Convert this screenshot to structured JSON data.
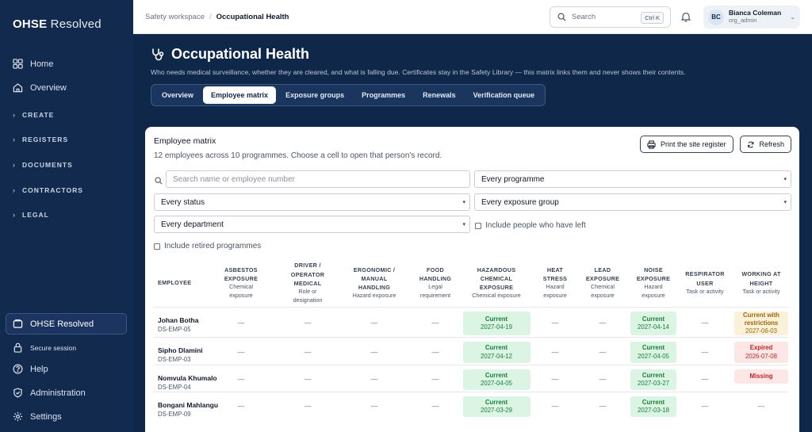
{
  "brand": {
    "bold": "OHSE",
    "light": " Resolved"
  },
  "sidebar": {
    "items": [
      {
        "label": "Home",
        "icon": "grid-icon"
      },
      {
        "label": "Overview",
        "icon": "home-icon"
      }
    ],
    "sections": [
      "CREATE",
      "REGISTERS",
      "DOCUMENTS",
      "CONTRACTORS",
      "LEGAL"
    ],
    "org_label": "OHSE Resolved",
    "secure_label": "Secure session",
    "footer_items": [
      {
        "label": "Help",
        "icon": "help-icon"
      },
      {
        "label": "Administration",
        "icon": "shield-icon"
      },
      {
        "label": "Settings",
        "icon": "gear-icon"
      }
    ]
  },
  "topbar": {
    "breadcrumb": [
      "Safety workspace",
      "Occupational Health"
    ],
    "search_placeholder": "Search",
    "search_shortcut": "Ctrl K",
    "user": {
      "initials": "BC",
      "name": "Bianca Coleman",
      "role": "org_admin"
    }
  },
  "hero": {
    "title": "Occupational Health",
    "subtitle": "Who needs medical surveillance, whether they are cleared, and what is falling due. Certificates stay in the Safety Library — this matrix links them and never shows their contents.",
    "tabs": [
      "Overview",
      "Employee matrix",
      "Exposure groups",
      "Programmes",
      "Renewals",
      "Verification queue"
    ],
    "active_tab": 1
  },
  "panel": {
    "title": "Employee matrix",
    "subtitle": "12 employees across 10 programmes. Choose a cell to open that person's record.",
    "print_label": "Print the site register",
    "refresh_label": "Refresh",
    "search_placeholder": "Search name or employee number",
    "programme_filter": "Every programme",
    "status_filter": "Every status",
    "exposure_filter": "Every exposure group",
    "department_filter": "Every department",
    "include_left": "Include people who have left",
    "include_retired": "Include retired programmes"
  },
  "matrix": {
    "employee_header": "EMPLOYEE",
    "columns": [
      {
        "title": [
          "ASBESTOS",
          "EXPOSURE"
        ],
        "sub": [
          "Chemical",
          "exposure"
        ]
      },
      {
        "title": [
          "DRIVER /",
          "OPERATOR",
          "MEDICAL"
        ],
        "sub": [
          "Role or",
          "designation"
        ]
      },
      {
        "title": [
          "ERGONOMIC /",
          "MANUAL",
          "HANDLING"
        ],
        "sub": [
          "Hazard exposure"
        ]
      },
      {
        "title": [
          "FOOD",
          "HANDLING"
        ],
        "sub": [
          "Legal",
          "requirement"
        ]
      },
      {
        "title": [
          "HAZARDOUS",
          "CHEMICAL",
          "EXPOSURE"
        ],
        "sub": [
          "Chemical exposure"
        ]
      },
      {
        "title": [
          "HEAT",
          "STRESS"
        ],
        "sub": [
          "Hazard",
          "exposure"
        ]
      },
      {
        "title": [
          "LEAD",
          "EXPOSURE"
        ],
        "sub": [
          "Chemical",
          "exposure"
        ]
      },
      {
        "title": [
          "NOISE",
          "EXPOSURE"
        ],
        "sub": [
          "Hazard",
          "exposure"
        ]
      },
      {
        "title": [
          "RESPIRATOR",
          "USER"
        ],
        "sub": [
          "Task or activity"
        ]
      },
      {
        "title": [
          "WORKING AT",
          "HEIGHT"
        ],
        "sub": [
          "Task or activity"
        ]
      }
    ],
    "empty_symbol": "—",
    "rows": [
      {
        "name": "Johan Botha",
        "id": "DS-EMP-05",
        "cells": [
          null,
          null,
          null,
          null,
          {
            "status": "Current",
            "date": "2027-04-19",
            "tone": "current"
          },
          null,
          null,
          {
            "status": "Current",
            "date": "2027-04-14",
            "tone": "current"
          },
          null,
          {
            "status": "Current with restrictions",
            "date": "2027-06-03",
            "tone": "restrict"
          }
        ]
      },
      {
        "name": "Sipho Dlamini",
        "id": "DS-EMP-03",
        "cells": [
          null,
          null,
          null,
          null,
          {
            "status": "Current",
            "date": "2027-04-12",
            "tone": "current"
          },
          null,
          null,
          {
            "status": "Current",
            "date": "2027-04-05",
            "tone": "current"
          },
          null,
          {
            "status": "Expired",
            "date": "2026-07-08",
            "tone": "expired"
          }
        ]
      },
      {
        "name": "Nomvula Khumalo",
        "id": "DS-EMP-04",
        "cells": [
          null,
          null,
          null,
          null,
          {
            "status": "Current",
            "date": "2027-04-05",
            "tone": "current"
          },
          null,
          null,
          {
            "status": "Current",
            "date": "2027-03-27",
            "tone": "current"
          },
          null,
          {
            "status": "Missing",
            "date": "",
            "tone": "missing"
          }
        ]
      },
      {
        "name": "Bongani Mahlangu",
        "id": "DS-EMP-09",
        "cells": [
          null,
          null,
          null,
          null,
          {
            "status": "Current",
            "date": "2027-03-29",
            "tone": "current"
          },
          null,
          null,
          {
            "status": "Current",
            "date": "2027-03-18",
            "tone": "current"
          },
          null,
          null
        ]
      }
    ]
  },
  "colors": {
    "navy": "#0f2748",
    "sidebar": "#122a4d",
    "current": "#dcf4e3",
    "expired": "#fde6e6",
    "restrict": "#fbf0d8",
    "avatar": "#dbe6f5"
  }
}
